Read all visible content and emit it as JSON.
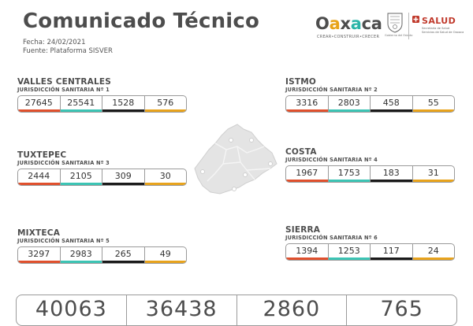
{
  "header": {
    "title": "Comunicado Técnico",
    "date": "Fecha: 24/02/2021",
    "source": "Fuente: Plataforma SISVER"
  },
  "logos": {
    "oaxaca_tag": "CREAR•CONSTRUIR•CRECER",
    "seal_caption": "Gobierno del Estado",
    "salud": "SALUD",
    "salud_sub1": "Secretaría de Salud",
    "salud_sub2": "Servicios de Salud de Oaxaca"
  },
  "colors": {
    "red": "#e0502d",
    "teal": "#3cc4b4",
    "black": "#1a1a1a",
    "yellow": "#e8a31c"
  },
  "regions": {
    "valles": {
      "name": "VALLES CENTRALES",
      "jurisdiction": "JURISDICCIÓN SANITARIA Nº 1",
      "values": [
        "27645",
        "25541",
        "1528",
        "576"
      ]
    },
    "istmo": {
      "name": "ISTMO",
      "jurisdiction": "JURISDICCIÓN SANITARIA Nº 2",
      "values": [
        "3316",
        "2803",
        "458",
        "55"
      ]
    },
    "tux": {
      "name": "TUXTEPEC",
      "jurisdiction": "JURISDICCIÓN SANITARIA Nº 3",
      "values": [
        "2444",
        "2105",
        "309",
        "30"
      ]
    },
    "costa": {
      "name": "COSTA",
      "jurisdiction": "JURISDICCIÓN SANITARIA Nº 4",
      "values": [
        "1967",
        "1753",
        "183",
        "31"
      ]
    },
    "mix": {
      "name": "MIXTECA",
      "jurisdiction": "JURISDICCIÓN SANITARIA Nº 5",
      "values": [
        "3297",
        "2983",
        "265",
        "49"
      ]
    },
    "sierra": {
      "name": "SIERRA",
      "jurisdiction": "JURISDICCIÓN SANITARIA Nº 6",
      "values": [
        "1394",
        "1253",
        "117",
        "24"
      ]
    }
  },
  "totals": [
    "40063",
    "36438",
    "2860",
    "765"
  ]
}
